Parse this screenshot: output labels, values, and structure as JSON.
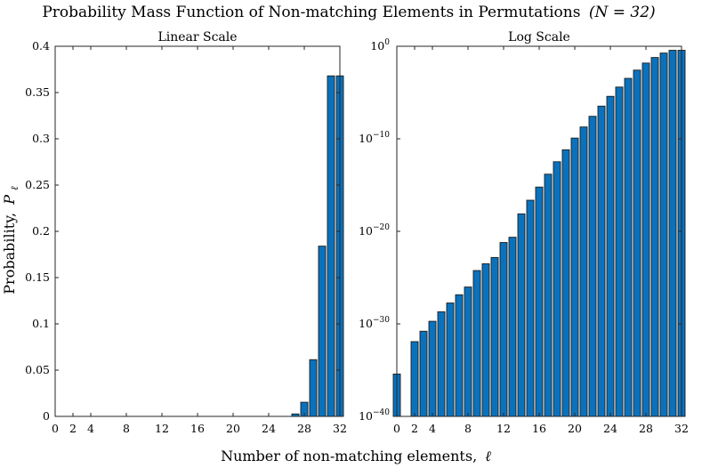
{
  "figure": {
    "title": "Probability Mass Function of Non-matching Elements in Permutations",
    "title_math": "(N = 32)",
    "xlabel": "Number of non-matching elements,",
    "xlabel_symbol": "ℓ",
    "ylabel": "Probability,",
    "ylabel_symbol": "P",
    "ylabel_subscript": "ℓ"
  },
  "chart_data": [
    {
      "type": "bar",
      "title": "Linear Scale",
      "xlim": [
        0,
        32
      ],
      "ylim": [
        0,
        0.4
      ],
      "yscale": "linear",
      "xticks": [
        0,
        2,
        4,
        8,
        12,
        16,
        20,
        24,
        28,
        32
      ],
      "yticks": [
        0,
        0.05,
        0.1,
        0.15,
        0.2,
        0.25,
        0.3,
        0.35,
        0.4
      ],
      "yticklabels": [
        "0",
        "0.05",
        "0.1",
        "0.15",
        "0.2",
        "0.25",
        "0.3",
        "0.35",
        "0.4"
      ],
      "x": [
        0,
        1,
        2,
        3,
        4,
        5,
        6,
        7,
        8,
        9,
        10,
        11,
        12,
        13,
        14,
        15,
        16,
        17,
        18,
        19,
        20,
        21,
        22,
        23,
        24,
        25,
        26,
        27,
        28,
        29,
        30,
        31,
        32
      ],
      "values": [
        3.8e-36,
        0,
        1.2e-32,
        1.6e-31,
        1.9e-30,
        2e-29,
        1.8e-28,
        1.4e-27,
        9.6e-27,
        5.8e-25,
        3.1e-24,
        1.5e-23,
        6.2e-22,
        2.3e-21,
        7.7e-19,
        2.3e-17,
        6.1e-16,
        1.5e-14,
        3.3e-13,
        6.5e-12,
        1.2e-10,
        1.9e-09,
        2.7e-08,
        3.4e-07,
        3.9e-06,
        3.9e-05,
        0.00034,
        0.00264,
        0.0153,
        0.0613,
        0.184,
        0.368,
        0.368
      ]
    },
    {
      "type": "bar",
      "title": "Log Scale",
      "xlim": [
        0,
        32
      ],
      "ylim": [
        1e-40,
        1
      ],
      "yscale": "log",
      "xticks": [
        0,
        2,
        4,
        8,
        12,
        16,
        20,
        24,
        28,
        32
      ],
      "yticks": [
        1e-40,
        1e-30,
        1e-20,
        1e-10,
        1
      ],
      "yticklabels": [
        {
          "base": "10",
          "exp": "−40"
        },
        {
          "base": "10",
          "exp": "−30"
        },
        {
          "base": "10",
          "exp": "−20"
        },
        {
          "base": "10",
          "exp": "−10"
        },
        {
          "base": "10",
          "exp": "0"
        }
      ],
      "x": [
        0,
        1,
        2,
        3,
        4,
        5,
        6,
        7,
        8,
        9,
        10,
        11,
        12,
        13,
        14,
        15,
        16,
        17,
        18,
        19,
        20,
        21,
        22,
        23,
        24,
        25,
        26,
        27,
        28,
        29,
        30,
        31,
        32
      ],
      "values": [
        3.8e-36,
        0,
        1.2e-32,
        1.6e-31,
        1.9e-30,
        2e-29,
        1.8e-28,
        1.4e-27,
        9.6e-27,
        5.8e-25,
        3.1e-24,
        1.5e-23,
        6.2e-22,
        2.3e-21,
        7.7e-19,
        2.3e-17,
        6.1e-16,
        1.5e-14,
        3.3e-13,
        6.5e-12,
        1.2e-10,
        1.9e-09,
        2.7e-08,
        3.4e-07,
        3.9e-06,
        3.9e-05,
        0.00034,
        0.00264,
        0.0153,
        0.0613,
        0.184,
        0.368,
        0.368
      ]
    }
  ],
  "colors": {
    "bar_fill": "#0a72bd",
    "bar_edge": "#1c1c1c",
    "axes": "#262626",
    "text": "#222222"
  }
}
